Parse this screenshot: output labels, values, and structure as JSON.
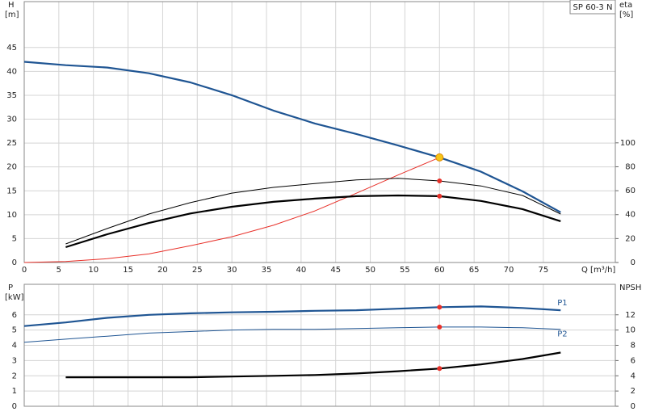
{
  "chart_data": [
    {
      "type": "line",
      "title": "SP 60-3 N",
      "ylabel": "H",
      "yunit": "[m]",
      "y2label": "eta",
      "y2unit": "[%]",
      "xlabel": "Q [m³/h]",
      "x": [
        0,
        6,
        12,
        18,
        24,
        30,
        36,
        42,
        48,
        54,
        60,
        66,
        72,
        77.5
      ],
      "xlim": [
        0,
        85.4
      ],
      "xticks": [
        0,
        5,
        10,
        15,
        20,
        25,
        30,
        35,
        40,
        45,
        50,
        55,
        60,
        65,
        70,
        75
      ],
      "ylim": [
        0,
        54.6
      ],
      "yticks": [
        0,
        5,
        10,
        15,
        20,
        25,
        30,
        35,
        40,
        45
      ],
      "y2lim": [
        0,
        218
      ],
      "y2ticks": [
        0,
        20,
        40,
        60,
        80,
        100
      ],
      "grid": true,
      "series": [
        {
          "color": "#1f5593",
          "weight": "thick",
          "axis": "y",
          "values": [
            42,
            41.3,
            40.8,
            39.6,
            37.7,
            35,
            31.8,
            29.1,
            26.9,
            24.5,
            22,
            19,
            14.9,
            10.5
          ]
        },
        {
          "color": "#e8312a",
          "weight": "thin",
          "axis": "y",
          "values": [
            0,
            0.2,
            0.8,
            1.8,
            3.5,
            5.4,
            7.8,
            10.8,
            14.5,
            18.3,
            22,
            null,
            null,
            null
          ]
        },
        {
          "color": "#000000",
          "weight": "thin",
          "axis": "y2",
          "values": [
            null,
            15.5,
            28.4,
            40.5,
            50,
            58,
            62.8,
            66,
            69,
            70.3,
            68.2,
            64,
            56,
            40.5
          ]
        },
        {
          "color": "#000000",
          "weight": "thick",
          "axis": "y2",
          "values": [
            null,
            12.8,
            23.6,
            33,
            41,
            46.6,
            50.7,
            53.4,
            55.4,
            56,
            55.4,
            51.4,
            44.6,
            34.5
          ]
        }
      ],
      "markers": [
        {
          "x": 60,
          "y": 22,
          "axis": "y",
          "color": "#f5c518"
        },
        {
          "x": 60,
          "y": 68.2,
          "axis": "y2",
          "color": "#e8312a"
        },
        {
          "x": 60,
          "y": 55.4,
          "axis": "y2",
          "color": "#e8312a"
        }
      ]
    },
    {
      "type": "line",
      "ylabel": "P",
      "yunit": "[kW]",
      "y2label": "NPSH",
      "x": [
        0,
        6,
        12,
        18,
        24,
        30,
        36,
        42,
        48,
        54,
        60,
        66,
        72,
        77.5
      ],
      "xlim": [
        0,
        85.4
      ],
      "xticks": [
        0,
        5,
        10,
        15,
        20,
        25,
        30,
        35,
        40,
        45,
        50,
        55,
        60,
        65,
        70,
        75
      ],
      "ylim": [
        0,
        8
      ],
      "yticks": [
        0,
        1,
        2,
        3,
        4,
        5,
        6
      ],
      "y2lim": [
        0,
        16
      ],
      "y2ticks": [
        0,
        2,
        4,
        6,
        8,
        10,
        12
      ],
      "grid": true,
      "series": [
        {
          "name": "P1",
          "color": "#1f5593",
          "weight": "thick",
          "axis": "y",
          "values": [
            5.26,
            5.5,
            5.8,
            6,
            6.1,
            6.16,
            6.2,
            6.26,
            6.3,
            6.4,
            6.5,
            6.55,
            6.45,
            6.3
          ]
        },
        {
          "name": "P2",
          "color": "#1f5593",
          "weight": "thin",
          "axis": "y",
          "values": [
            4.2,
            4.4,
            4.6,
            4.8,
            4.9,
            5,
            5.05,
            5.05,
            5.1,
            5.15,
            5.2,
            5.2,
            5.15,
            5.05
          ]
        },
        {
          "color": "#000000",
          "weight": "thick",
          "axis": "y2",
          "values": [
            null,
            3.8,
            3.8,
            3.8,
            3.8,
            3.9,
            4,
            4.1,
            4.3,
            4.6,
            4.95,
            5.5,
            6.2,
            7.05
          ]
        }
      ],
      "markers": [
        {
          "x": 60,
          "y": 6.5,
          "axis": "y",
          "color": "#e8312a"
        },
        {
          "x": 60,
          "y": 5.2,
          "axis": "y",
          "color": "#e8312a"
        },
        {
          "x": 60,
          "y": 4.95,
          "axis": "y2",
          "color": "#e8312a"
        }
      ]
    }
  ]
}
